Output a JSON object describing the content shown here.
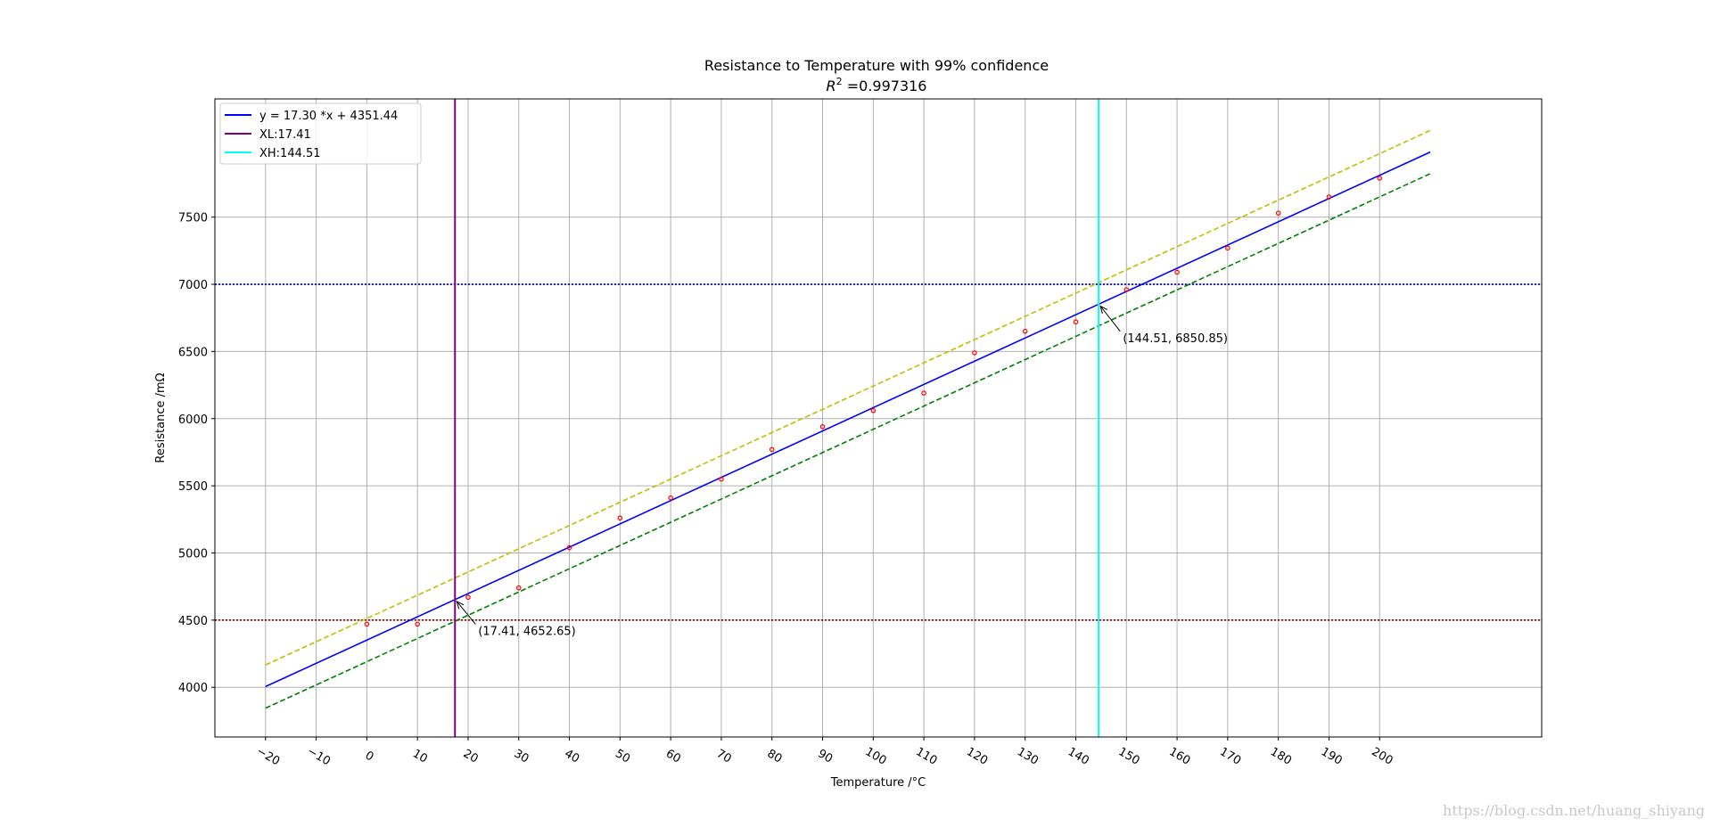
{
  "chart_data": {
    "type": "scatter",
    "title": "Resistance to Temperature with 99% confidence",
    "subtitle_prefix": "R",
    "subtitle_sup": "2",
    "subtitle_value": " =0.997316",
    "xlabel": "Temperature /°C",
    "ylabel": "Resistance /mΩ",
    "xlim": [
      -30,
      232
    ],
    "ylim": [
      3630,
      8380
    ],
    "grid": true,
    "legend_position": "top-left",
    "xticks": [
      -20,
      -10,
      0,
      10,
      20,
      30,
      40,
      50,
      60,
      70,
      80,
      90,
      100,
      110,
      120,
      130,
      140,
      150,
      160,
      170,
      180,
      190,
      200
    ],
    "xtick_labels": [
      "−20",
      "−10",
      "0",
      "10",
      "20",
      "30",
      "40",
      "50",
      "60",
      "70",
      "80",
      "90",
      "100",
      "110",
      "120",
      "130",
      "140",
      "150",
      "160",
      "170",
      "180",
      "190",
      "200"
    ],
    "yticks": [
      4000,
      4500,
      5000,
      5500,
      6000,
      6500,
      7000,
      7500
    ],
    "ytick_labels": [
      "4000",
      "4500",
      "5000",
      "5500",
      "6000",
      "6500",
      "7000",
      "7500"
    ],
    "points": {
      "color": "#ff0000",
      "x": [
        0,
        10,
        20,
        30,
        40,
        50,
        60,
        70,
        80,
        90,
        100,
        110,
        120,
        130,
        140,
        150,
        160,
        170,
        180,
        190,
        200
      ],
      "y": [
        4470,
        4470,
        4670,
        4740,
        5040,
        5260,
        5410,
        5550,
        5770,
        5940,
        6060,
        6190,
        6490,
        6650,
        6720,
        6960,
        7090,
        7270,
        7530,
        7650,
        7790
      ]
    },
    "fit_line": {
      "name": "y = 17.30 *x  + 4351.44",
      "color": "#0000ff",
      "slope": 17.3,
      "intercept": 4351.44,
      "x_range": [
        -20,
        210
      ]
    },
    "upper_band": {
      "color": "#bfbf00",
      "offset": 160.9,
      "x_range": [
        -20,
        210
      ]
    },
    "lower_band": {
      "color": "#008000",
      "offset": -160.9,
      "x_range": [
        -20,
        210
      ]
    },
    "vlines": [
      {
        "name": "XL:17.41",
        "x": 17.41,
        "color": "#800080"
      },
      {
        "name": "XH:144.51",
        "x": 144.51,
        "color": "#00ffff"
      }
    ],
    "hlines": [
      {
        "y": 7000,
        "color": "#00008b"
      },
      {
        "y": 4500,
        "color": "#8b0000"
      }
    ],
    "annotations": [
      {
        "text": "(17.41, 4652.65)",
        "x": 17.41,
        "y": 4652.65,
        "text_x": 22.0,
        "text_y": 4390
      },
      {
        "text": "(144.51, 6850.85)",
        "x": 144.51,
        "y": 6850.85,
        "text_x": 149.3,
        "text_y": 6570
      }
    ]
  },
  "watermark": "https://blog.csdn.net/huang_shiyang"
}
